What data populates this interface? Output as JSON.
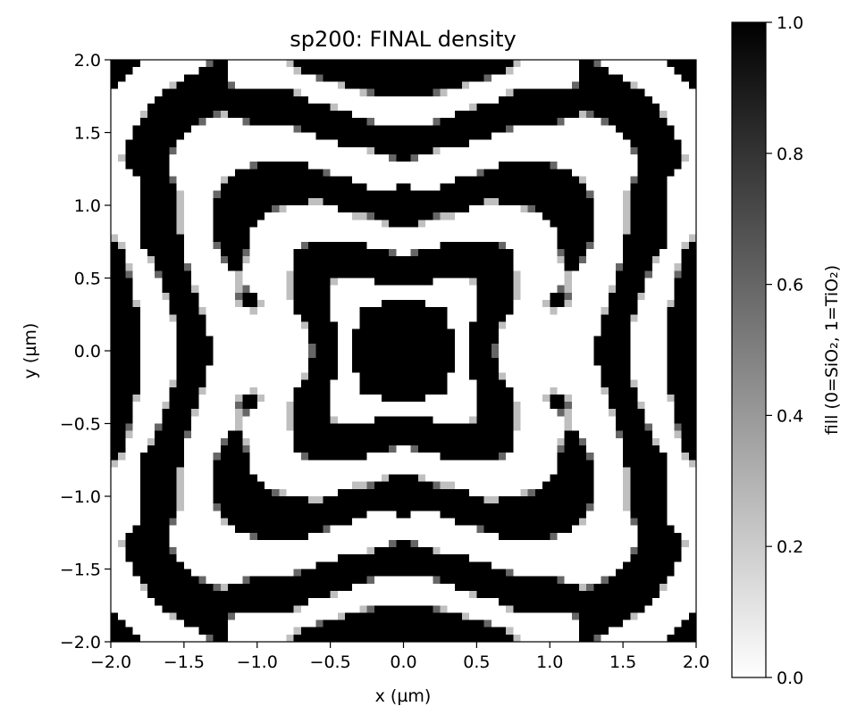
{
  "chart_data": {
    "type": "heatmap",
    "title": "sp200: FINAL density",
    "xlabel": "x (µm)",
    "ylabel": "y (µm)",
    "xlim": [
      -2.0,
      2.0
    ],
    "ylim": [
      -2.0,
      2.0
    ],
    "x_ticks": [
      "−2.0",
      "−1.5",
      "−1.0",
      "−0.5",
      "0.0",
      "0.5",
      "1.0",
      "1.5",
      "2.0"
    ],
    "y_ticks": [
      "2.0",
      "1.5",
      "1.0",
      "0.5",
      "0.0",
      "−0.5",
      "−1.0",
      "−1.5",
      "−2.0"
    ],
    "grid_resolution": 80,
    "symmetry": "four-fold mirror symmetric about x=0 and y=0",
    "colormap": "gray_r",
    "colorbar": {
      "label": "fill (0=SiO₂, 1=TiO₂)",
      "range": [
        0.0,
        1.0
      ],
      "ticks": [
        "1.0",
        "0.8",
        "0.6",
        "0.4",
        "0.2",
        "0.0"
      ]
    },
    "colors": {
      "min": "#ffffff",
      "max": "#000000"
    },
    "grid": false
  }
}
